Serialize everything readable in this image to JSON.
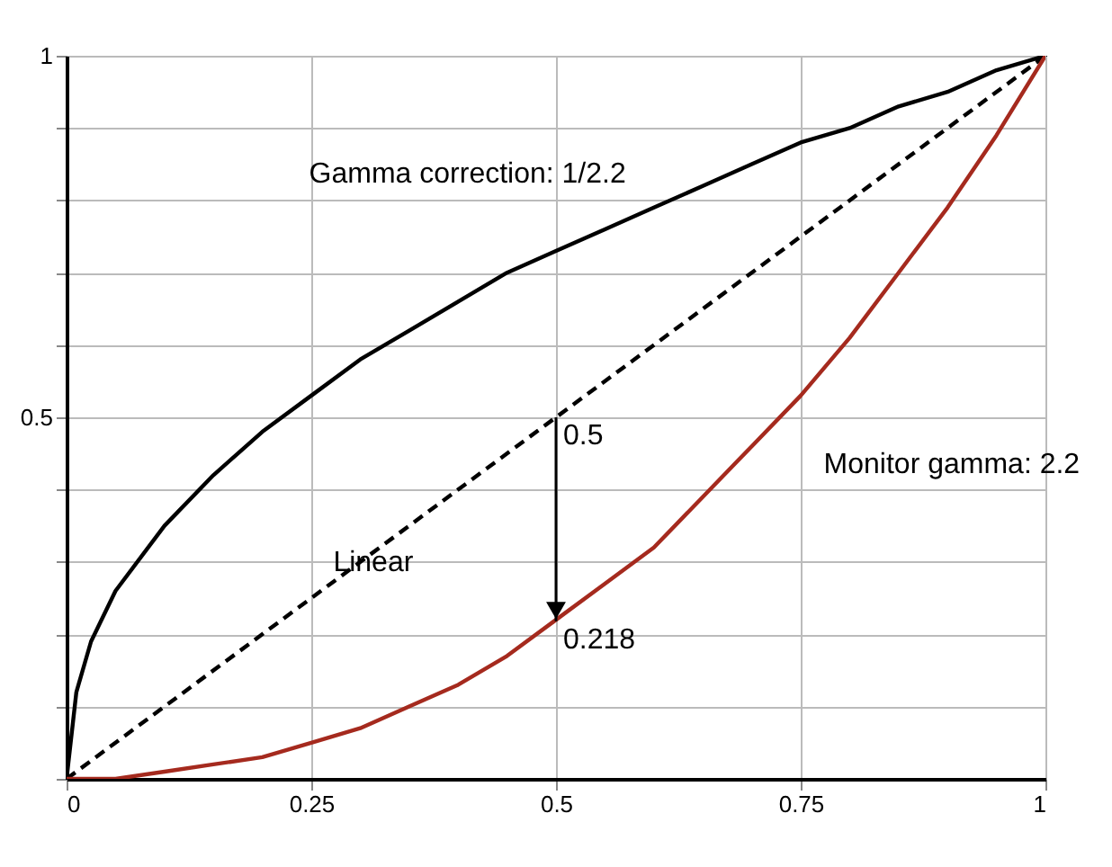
{
  "chart_data": {
    "type": "line",
    "grid": true,
    "xlim": [
      0,
      1
    ],
    "ylim": [
      0,
      1
    ],
    "xticks": [
      0,
      0.25,
      0.5,
      0.75,
      1
    ],
    "yticks": [
      {
        "value": 0,
        "label": null
      },
      {
        "value": 0.1,
        "label": null
      },
      {
        "value": 0.2,
        "label": null
      },
      {
        "value": 0.3,
        "label": null
      },
      {
        "value": 0.4,
        "label": null
      },
      0.5,
      {
        "value": 0.6,
        "label": null
      },
      {
        "value": 0.7,
        "label": null
      },
      {
        "value": 0.8,
        "label": null
      },
      {
        "value": 0.9,
        "label": null
      },
      1
    ],
    "series": [
      {
        "name": "Gamma correction: 1/2.2",
        "color": "#000000",
        "line_style": "solid",
        "x": [
          0,
          0.01,
          0.025,
          0.05,
          0.1,
          0.15,
          0.2,
          0.25,
          0.3,
          0.35,
          0.4,
          0.45,
          0.5,
          0.55,
          0.6,
          0.65,
          0.7,
          0.75,
          0.8,
          0.85,
          0.9,
          0.95,
          1
        ],
        "values": [
          0,
          0.12,
          0.19,
          0.26,
          0.35,
          0.42,
          0.48,
          0.53,
          0.58,
          0.62,
          0.66,
          0.7,
          0.73,
          0.76,
          0.79,
          0.82,
          0.85,
          0.88,
          0.9,
          0.93,
          0.95,
          0.98,
          1
        ]
      },
      {
        "name": "Linear",
        "color": "#000000",
        "line_style": "dashed",
        "x": [
          0,
          1
        ],
        "values": [
          0,
          1
        ]
      },
      {
        "name": "Monitor gamma: 2.2",
        "color": "#a52a1e",
        "line_style": "solid",
        "x": [
          0,
          0.05,
          0.1,
          0.15,
          0.2,
          0.25,
          0.3,
          0.35,
          0.4,
          0.45,
          0.5,
          0.55,
          0.6,
          0.65,
          0.7,
          0.75,
          0.8,
          0.85,
          0.9,
          0.95,
          1
        ],
        "values": [
          0,
          0,
          0.01,
          0.02,
          0.03,
          0.05,
          0.07,
          0.1,
          0.13,
          0.17,
          0.22,
          0.27,
          0.32,
          0.39,
          0.46,
          0.53,
          0.61,
          0.7,
          0.79,
          0.89,
          1
        ]
      }
    ],
    "annotations": [
      {
        "text": "0.5",
        "x": 0.5,
        "y": 0.5
      },
      {
        "text": "0.218",
        "x": 0.5,
        "y": 0.218
      }
    ]
  }
}
